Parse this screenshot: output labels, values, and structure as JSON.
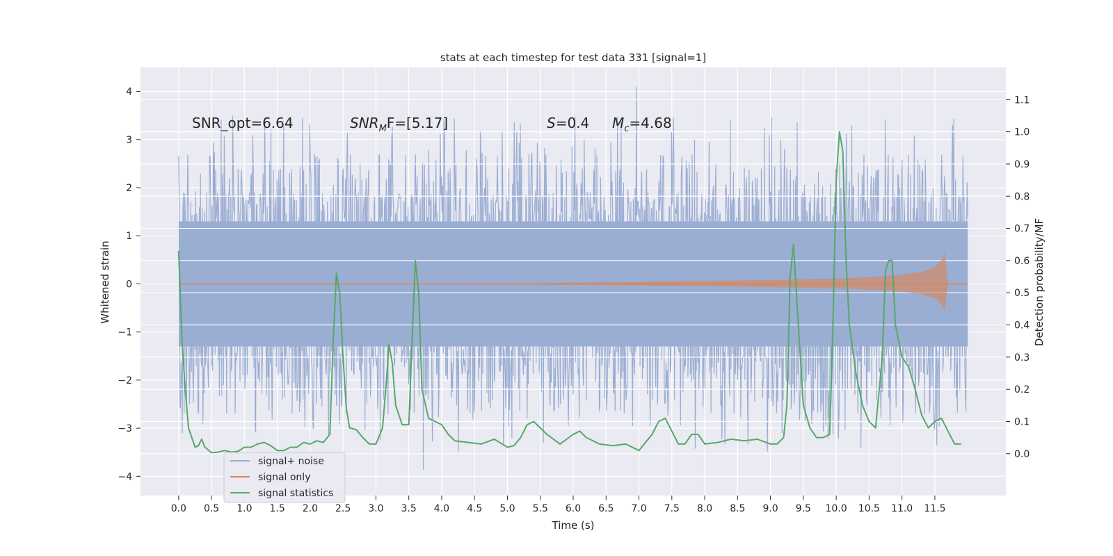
{
  "chart_data": {
    "type": "line",
    "title": "stats at each timestep for test data 331 [signal=1]",
    "xlabel": "Time (s)",
    "ylabel": "Whitened strain",
    "y2label": "Detection probability/MF",
    "xlim": [
      -0.58,
      12.58
    ],
    "ylim": [
      -4.4,
      4.5
    ],
    "y2lim": [
      -0.13,
      1.2
    ],
    "xticks": [
      "0.0",
      "0.5",
      "1.0",
      "1.5",
      "2.0",
      "2.5",
      "3.0",
      "3.5",
      "4.0",
      "4.5",
      "5.0",
      "5.5",
      "6.0",
      "6.5",
      "7.0",
      "7.5",
      "8.0",
      "8.5",
      "9.0",
      "9.5",
      "10.0",
      "10.5",
      "11.0",
      "11.5"
    ],
    "yticks": [
      "4",
      "3",
      "2",
      "1",
      "0",
      "−1",
      "−2",
      "−3",
      "−4"
    ],
    "y2ticks": [
      "1.1",
      "1.0",
      "0.9",
      "0.8",
      "0.7",
      "0.6",
      "0.5",
      "0.4",
      "0.3",
      "0.2",
      "0.1",
      "0.0"
    ],
    "grid": true,
    "legend_position": "lower-left",
    "annotations": {
      "snr_opt": "SNR_opt=6.64",
      "snr_mf_main": "SNR",
      "snr_mf_sub": "M",
      "snr_mf_rest": "F=[5.17]",
      "s_var": "S",
      "s_val": "=0.4",
      "mc_var": "M",
      "mc_sub": "c",
      "mc_val": "=4.68"
    },
    "series": [
      {
        "name": "signal+ noise",
        "color": "#9aadd2",
        "t_range": [
          0.0,
          12.0
        ],
        "envelope_upper": 2.8,
        "envelope_lower": -2.8,
        "core_band": [
          -1.3,
          1.3
        ],
        "peak_max": 4.1,
        "peak_min": -3.87
      },
      {
        "name": "signal only",
        "color": "#dd8452",
        "t": [
          0.0,
          4.0,
          5.0,
          6.0,
          7.0,
          8.0,
          9.0,
          10.0,
          10.5,
          11.0,
          11.3,
          11.5,
          11.6,
          11.65,
          11.7
        ],
        "amplitude": [
          0.0,
          0.005,
          0.01,
          0.025,
          0.04,
          0.06,
          0.08,
          0.11,
          0.14,
          0.19,
          0.25,
          0.35,
          0.5,
          0.65,
          0.0
        ]
      },
      {
        "name": "signal statistics",
        "color": "#55a868",
        "t": [
          0.0,
          0.05,
          0.1,
          0.15,
          0.2,
          0.25,
          0.3,
          0.35,
          0.4,
          0.5,
          0.6,
          0.7,
          0.8,
          0.9,
          1.0,
          1.1,
          1.2,
          1.3,
          1.4,
          1.5,
          1.6,
          1.7,
          1.8,
          1.9,
          2.0,
          2.1,
          2.2,
          2.3,
          2.35,
          2.4,
          2.45,
          2.5,
          2.55,
          2.6,
          2.7,
          2.8,
          2.9,
          3.0,
          3.1,
          3.15,
          3.2,
          3.25,
          3.3,
          3.4,
          3.5,
          3.55,
          3.6,
          3.65,
          3.7,
          3.8,
          3.9,
          4.0,
          4.1,
          4.2,
          4.4,
          4.6,
          4.8,
          5.0,
          5.1,
          5.2,
          5.3,
          5.4,
          5.6,
          5.8,
          6.0,
          6.1,
          6.2,
          6.4,
          6.6,
          6.8,
          7.0,
          7.2,
          7.3,
          7.4,
          7.5,
          7.6,
          7.7,
          7.8,
          7.9,
          8.0,
          8.2,
          8.4,
          8.6,
          8.8,
          9.0,
          9.1,
          9.2,
          9.25,
          9.3,
          9.35,
          9.4,
          9.5,
          9.6,
          9.7,
          9.8,
          9.9,
          9.95,
          10.0,
          10.05,
          10.1,
          10.15,
          10.2,
          10.3,
          10.4,
          10.5,
          10.6,
          10.7,
          10.75,
          10.8,
          10.85,
          10.9,
          11.0,
          11.1,
          11.2,
          11.3,
          11.4,
          11.5,
          11.6,
          11.7,
          11.8,
          11.9
        ],
        "values": [
          0.63,
          0.35,
          0.2,
          0.08,
          0.05,
          0.02,
          0.025,
          0.045,
          0.02,
          0.003,
          0.005,
          0.01,
          0.005,
          0.007,
          0.02,
          0.02,
          0.03,
          0.035,
          0.025,
          0.01,
          0.01,
          0.02,
          0.02,
          0.035,
          0.03,
          0.04,
          0.035,
          0.06,
          0.35,
          0.56,
          0.5,
          0.3,
          0.14,
          0.08,
          0.075,
          0.05,
          0.03,
          0.03,
          0.08,
          0.2,
          0.34,
          0.28,
          0.15,
          0.09,
          0.09,
          0.35,
          0.6,
          0.5,
          0.2,
          0.11,
          0.1,
          0.09,
          0.06,
          0.04,
          0.035,
          0.03,
          0.045,
          0.02,
          0.025,
          0.05,
          0.09,
          0.1,
          0.06,
          0.03,
          0.06,
          0.07,
          0.05,
          0.03,
          0.025,
          0.03,
          0.01,
          0.06,
          0.1,
          0.11,
          0.07,
          0.03,
          0.03,
          0.06,
          0.06,
          0.03,
          0.035,
          0.045,
          0.04,
          0.045,
          0.03,
          0.03,
          0.05,
          0.15,
          0.55,
          0.65,
          0.48,
          0.15,
          0.08,
          0.05,
          0.05,
          0.06,
          0.4,
          0.85,
          1.0,
          0.94,
          0.6,
          0.4,
          0.25,
          0.15,
          0.1,
          0.08,
          0.3,
          0.57,
          0.6,
          0.6,
          0.4,
          0.3,
          0.27,
          0.2,
          0.12,
          0.08,
          0.1,
          0.11,
          0.07,
          0.03,
          0.03
        ]
      }
    ]
  }
}
